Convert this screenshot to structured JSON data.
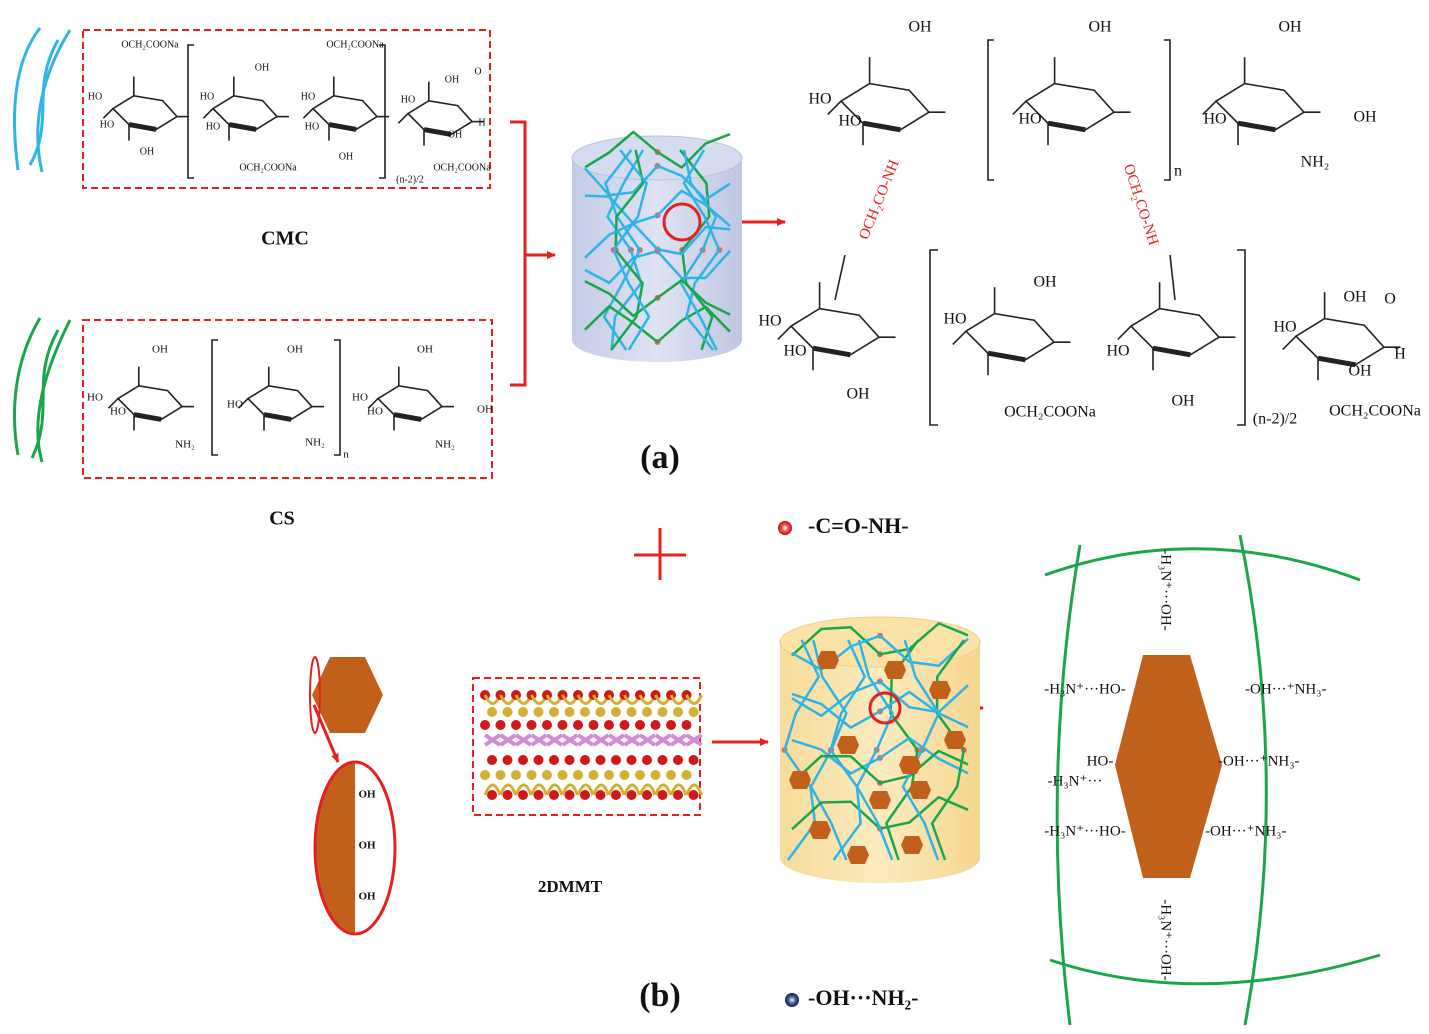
{
  "panel_a": {
    "label": "(a)",
    "cmc": {
      "name": "CMC",
      "labels": [
        "OCH₂COONa",
        "HO",
        "HO",
        "OH",
        "OH",
        "HO",
        "HO",
        "OCH₂COONa",
        "OCH₂COONa",
        "HO",
        "HO",
        "OH",
        "OH",
        "HO",
        "O",
        "H",
        "OH",
        "OCH₂COONa",
        "(n-2)/2"
      ]
    },
    "cs": {
      "name": "CS",
      "labels": [
        "OH",
        "HO",
        "HO",
        "NH₂",
        "OH",
        "HO",
        "NH₂",
        "n",
        "OH",
        "HO",
        "HO",
        "NH₂",
        "OH"
      ]
    },
    "product": {
      "labels": [
        "OH",
        "HO",
        "HO",
        "OH",
        "HO",
        "n",
        "OH",
        "HO",
        "NH₂",
        "OH",
        "HO",
        "HO",
        "OH",
        "HO",
        "OH",
        "OCH₂COONa",
        "HO",
        "OH",
        "(n-2)/2",
        "OH",
        "HO",
        "O",
        "H",
        "OH",
        "OCH₂COONa"
      ],
      "links": [
        "OCH₂CO-NH",
        "OCH₂CO-NH"
      ]
    }
  },
  "panel_b": {
    "label": "(b)",
    "mmt": "2DMMT",
    "edge_labels": [
      "OH",
      "OH",
      "OH"
    ],
    "detail_labels": [
      "-H₃N⁺···HO-",
      "-OH···⁺NH₃-",
      "HO-",
      "-H₃N⁺···",
      "-OH···⁺NH₃-",
      "-H₃N⁺···HO-",
      "-OH···⁺NH₃-",
      "-H₃N⁺···OH-",
      "-H₃N⁺···OH-"
    ]
  },
  "legend": [
    {
      "label": "-C=O-NH-"
    },
    {
      "label": "-OH···NH₂-"
    }
  ]
}
